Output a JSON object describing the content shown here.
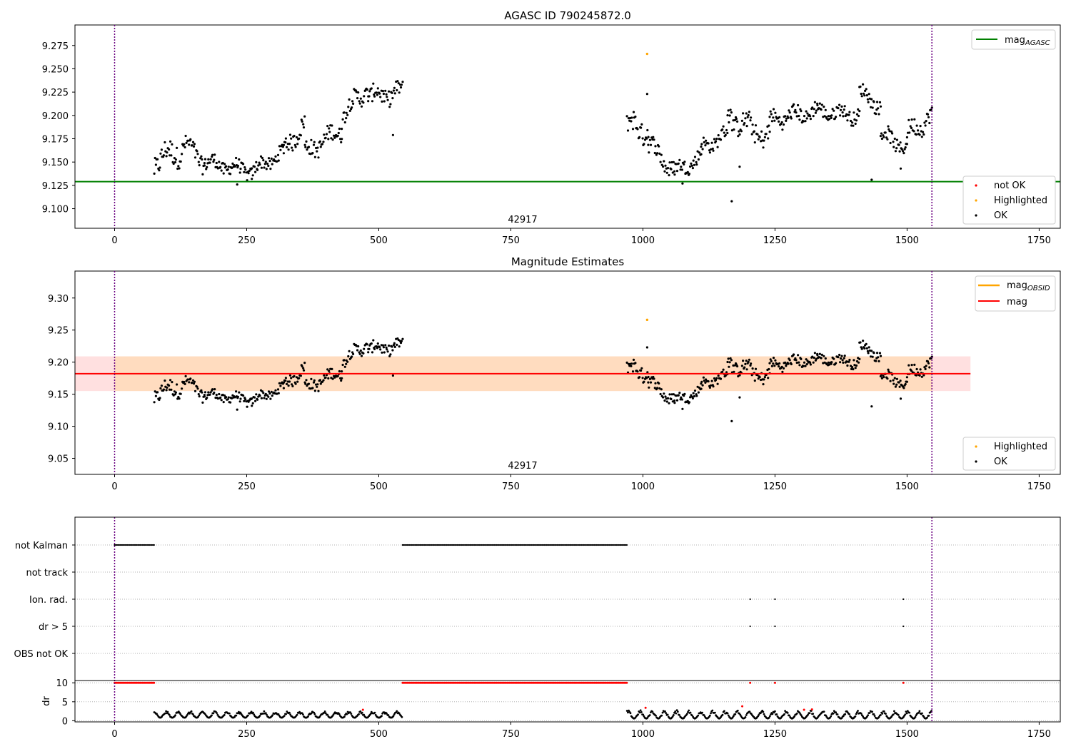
{
  "chart_data": [
    {
      "type": "scatter",
      "title": "AGASC ID 790245872.0",
      "xlim": [
        -75,
        1790
      ],
      "ylim": [
        9.079,
        9.297
      ],
      "xticks": [
        0,
        250,
        500,
        750,
        1000,
        1250,
        1500,
        1750
      ],
      "yticks": [
        9.1,
        9.125,
        9.15,
        9.175,
        9.2,
        9.225,
        9.25,
        9.275
      ],
      "ytick_labels": [
        "9.100",
        "9.125",
        "9.150",
        "9.175",
        "9.200",
        "9.225",
        "9.250",
        "9.275"
      ],
      "vlines": [
        0,
        1547
      ],
      "obsid_label": {
        "text": "42917",
        "x": 773
      },
      "hline": {
        "name": "mag",
        "sub": "AGASC",
        "value": 9.129,
        "color": "#008000"
      },
      "highlighted": [
        [
          1008,
          9.266
        ]
      ],
      "segments": [
        {
          "x": [
            75,
            130
          ],
          "y": [
            9.15,
            9.165
          ],
          "amp": 0.02
        },
        {
          "x": [
            130,
            170
          ],
          "y": [
            9.17,
            9.15
          ],
          "amp": 0.015
        },
        {
          "x": [
            170,
            260
          ],
          "y": [
            9.15,
            9.14
          ],
          "amp": 0.012
        },
        {
          "x": [
            260,
            320
          ],
          "y": [
            9.14,
            9.16
          ],
          "amp": 0.012
        },
        {
          "x": [
            320,
            360
          ],
          "y": [
            9.165,
            9.19
          ],
          "amp": 0.015
        },
        {
          "x": [
            360,
            430
          ],
          "y": [
            9.16,
            9.185
          ],
          "amp": 0.015
        },
        {
          "x": [
            430,
            480
          ],
          "y": [
            9.2,
            9.23
          ],
          "amp": 0.015
        },
        {
          "x": [
            480,
            545
          ],
          "y": [
            9.22,
            9.225
          ],
          "amp": 0.015
        },
        {
          "x": [
            970,
            1010
          ],
          "y": [
            9.19,
            9.185
          ],
          "amp": 0.02
        },
        {
          "x": [
            1010,
            1060
          ],
          "y": [
            9.17,
            9.14
          ],
          "amp": 0.015
        },
        {
          "x": [
            1060,
            1110
          ],
          "y": [
            9.14,
            9.155
          ],
          "amp": 0.012
        },
        {
          "x": [
            1110,
            1160
          ],
          "y": [
            9.165,
            9.18
          ],
          "amp": 0.012
        },
        {
          "x": [
            1160,
            1240
          ],
          "y": [
            9.2,
            9.175
          ],
          "amp": 0.018
        },
        {
          "x": [
            1240,
            1330
          ],
          "y": [
            9.195,
            9.205
          ],
          "amp": 0.013
        },
        {
          "x": [
            1330,
            1410
          ],
          "y": [
            9.205,
            9.2
          ],
          "amp": 0.012
        },
        {
          "x": [
            1410,
            1450
          ],
          "y": [
            9.225,
            9.21
          ],
          "amp": 0.012
        },
        {
          "x": [
            1450,
            1500
          ],
          "y": [
            9.18,
            9.165
          ],
          "amp": 0.013
        },
        {
          "x": [
            1500,
            1547
          ],
          "y": [
            9.18,
            9.2
          ],
          "amp": 0.015
        }
      ],
      "outliers": [
        [
          527,
          9.179
        ],
        [
          1008,
          9.223
        ],
        [
          1168,
          9.108
        ],
        [
          1183,
          9.145
        ],
        [
          1433,
          9.131
        ],
        [
          1488,
          9.143
        ],
        [
          232,
          9.126
        ],
        [
          1075,
          9.127
        ]
      ],
      "legends": [
        {
          "entries": [
            {
              "label": "mag",
              "sub": "AGASC",
              "kind": "line",
              "color": "#008000"
            }
          ]
        },
        {
          "entries": [
            {
              "label": "not OK",
              "kind": "dot",
              "color": "#ff0000"
            },
            {
              "label": "Highlighted",
              "kind": "dot",
              "color": "#ffa500"
            },
            {
              "label": "OK",
              "kind": "dot",
              "color": "#000000"
            }
          ]
        }
      ]
    },
    {
      "type": "scatter",
      "title": "Magnitude Estimates",
      "xlim": [
        -75,
        1790
      ],
      "ylim": [
        9.025,
        9.342
      ],
      "xticks": [
        0,
        250,
        500,
        750,
        1000,
        1250,
        1500,
        1750
      ],
      "yticks": [
        9.05,
        9.1,
        9.15,
        9.2,
        9.25,
        9.3
      ],
      "ytick_labels": [
        "9.05",
        "9.10",
        "9.15",
        "9.20",
        "9.25",
        "9.30"
      ],
      "vlines": [
        0,
        1547
      ],
      "obsid_label": {
        "text": "42917",
        "x": 773
      },
      "mag_line": {
        "value": 9.182,
        "x": [
          -75,
          1620
        ],
        "color": "#ff0000"
      },
      "mag_band": {
        "low": 9.155,
        "high": 9.209,
        "x": [
          -75,
          1620
        ]
      },
      "obsid_band": {
        "low": 9.155,
        "high": 9.209,
        "x": [
          0,
          1547
        ]
      },
      "highlighted": [
        [
          1008,
          9.266
        ]
      ],
      "legends": [
        {
          "entries": [
            {
              "label": "mag",
              "sub": "OBSID",
              "kind": "line",
              "color": "#ffa500"
            },
            {
              "label": "mag",
              "kind": "line",
              "color": "#ff0000"
            }
          ]
        },
        {
          "entries": [
            {
              "label": "Highlighted",
              "kind": "dot",
              "color": "#ffa500"
            },
            {
              "label": "OK",
              "kind": "dot",
              "color": "#000000"
            }
          ]
        }
      ]
    },
    {
      "type": "scatter",
      "xlim": [
        -75,
        1790
      ],
      "xticks": [
        0,
        250,
        500,
        750,
        1000,
        1250,
        1500,
        1750
      ],
      "vlines": [
        0,
        1547
      ],
      "flag_rows": [
        "not Kalman",
        "not track",
        "Ion. rad.",
        "dr > 5",
        "OBS not OK"
      ],
      "flags": {
        "not Kalman": [
          [
            0,
            75
          ],
          [
            545,
            970
          ]
        ],
        "not track": [],
        "Ion. rad.": [
          1203,
          1250,
          1493
        ],
        "dr > 5": [
          1203,
          1250,
          1493
        ],
        "OBS not OK": []
      },
      "dr": {
        "ylabel": "dr",
        "ylim": [
          -0.3,
          10.6
        ],
        "yticks": [
          0,
          5,
          10
        ],
        "red_at_10": [
          [
            0,
            75
          ],
          [
            545,
            970
          ]
        ],
        "red_points": [
          [
            1203,
            10
          ],
          [
            1250,
            10
          ],
          [
            1493,
            10
          ],
          [
            470,
            2.9
          ],
          [
            1005,
            3.4
          ],
          [
            1188,
            3.8
          ],
          [
            1305,
            2.9
          ],
          [
            1320,
            3.0
          ]
        ],
        "segments": [
          {
            "x": [
              75,
              545
            ],
            "low": 0.8,
            "high": 2.6
          },
          {
            "x": [
              970,
              1547
            ],
            "low": 0.6,
            "high": 2.8
          }
        ]
      }
    }
  ]
}
